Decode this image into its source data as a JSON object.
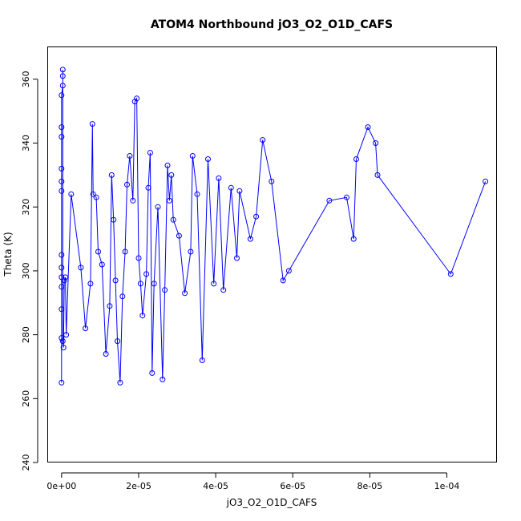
{
  "chart_data": {
    "type": "scatter",
    "title": "ATOM4 Northbound jO3_O2_O1D_CAFS",
    "xlabel": "jO3_O2_O1D_CAFS",
    "ylabel": "Theta (K)",
    "xlim": [
      -3.5e-06,
      0.000113
    ],
    "ylim": [
      240,
      370
    ],
    "x_ticks": [
      0,
      2e-05,
      4e-05,
      6e-05,
      8e-05,
      0.0001
    ],
    "x_tick_labels": [
      "0e+00",
      "2e-05",
      "4e-05",
      "6e-05",
      "8e-05",
      "1e-04"
    ],
    "y_ticks": [
      240,
      260,
      280,
      300,
      320,
      340,
      360
    ],
    "y_tick_labels": [
      "240",
      "260",
      "280",
      "300",
      "320",
      "340",
      "360"
    ],
    "grid": false,
    "legend": "none",
    "connected": true,
    "marker": "open-circle",
    "series": [
      {
        "color": "#0000ff",
        "x": [
          0.0,
          0.0,
          0.0,
          0.0,
          0.0,
          0.0,
          0.0,
          0.0,
          0.0,
          0.0,
          0.0,
          0.0,
          0.0,
          3e-07,
          3e-07,
          3e-07,
          3e-07,
          5e-07,
          7e-07,
          1e-06,
          1.2e-06,
          2.5e-06,
          5e-06,
          6.2e-06,
          7.5e-06,
          8e-06,
          8.2e-06,
          9e-06,
          9.5e-06,
          1.05e-05,
          1.15e-05,
          1.25e-05,
          1.3e-05,
          1.35e-05,
          1.4e-05,
          1.45e-05,
          1.52e-05,
          1.58e-05,
          1.65e-05,
          1.7e-05,
          1.77e-05,
          1.85e-05,
          1.9e-05,
          1.95e-05,
          2e-05,
          2.05e-05,
          2.1e-05,
          2.2e-05,
          2.25e-05,
          2.3e-05,
          2.35e-05,
          2.4e-05,
          2.5e-05,
          2.62e-05,
          2.68e-05,
          2.75e-05,
          2.8e-05,
          2.85e-05,
          2.9e-05,
          3.05e-05,
          3.2e-05,
          3.35e-05,
          3.4e-05,
          3.52e-05,
          3.65e-05,
          3.8e-05,
          3.95e-05,
          4.08e-05,
          4.2e-05,
          4.4e-05,
          4.55e-05,
          4.62e-05,
          4.9e-05,
          5.05e-05,
          5.22e-05,
          5.45e-05,
          5.75e-05,
          5.9e-05,
          6.95e-05,
          7.4e-05,
          7.58e-05,
          7.65e-05,
          7.95e-05,
          8.15e-05,
          8.2e-05,
          0.000101,
          0.00011
        ],
        "y": [
          265,
          279,
          288,
          295,
          298,
          301,
          305,
          325,
          328,
          332,
          342,
          345,
          355,
          358,
          361,
          363,
          278,
          276,
          297,
          298,
          280,
          324,
          301,
          282,
          296,
          346,
          324,
          323,
          306,
          302,
          274,
          289,
          330,
          316,
          297,
          278,
          265,
          292,
          306,
          327,
          336,
          322,
          353,
          354,
          304,
          296,
          286,
          299,
          326,
          337,
          268,
          296,
          320,
          266,
          294,
          333,
          322,
          330,
          316,
          311,
          293,
          306,
          336,
          324,
          272,
          335,
          296,
          329,
          294,
          326,
          304,
          325,
          310,
          317,
          341,
          328,
          297,
          300,
          322,
          323,
          310,
          335,
          345,
          340,
          330,
          299,
          328
        ]
      }
    ]
  }
}
